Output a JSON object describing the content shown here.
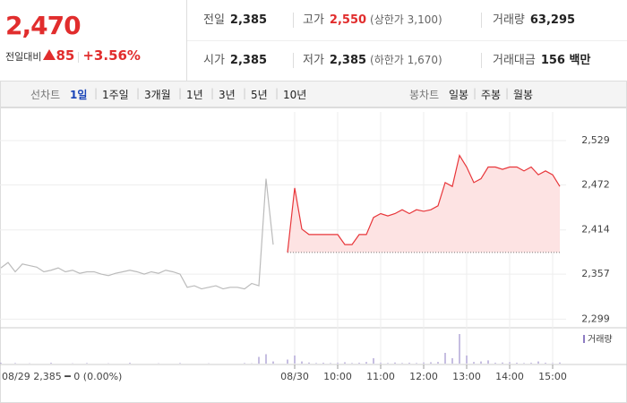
{
  "header": {
    "price": "2,470",
    "change_label": "전일대비",
    "change": "85",
    "change_pct": "+3.56%"
  },
  "summary": [
    [
      {
        "label": "전일",
        "value": "2,385"
      },
      {
        "label": "고가",
        "value": "2,550",
        "note": "(상한가 3,100)"
      },
      {
        "label": "거래량",
        "value": "63,295"
      }
    ],
    [
      {
        "label": "시가",
        "value": "2,385"
      },
      {
        "label": "저가",
        "value": "2,385",
        "note": "(하한가 1,670)"
      },
      {
        "label": "거래대금",
        "value": "156 백만"
      }
    ]
  ],
  "tabs": {
    "line_label": "선차트",
    "line": [
      "1일",
      "1주일",
      "3개월",
      "1년",
      "3년",
      "5년",
      "10년"
    ],
    "candle_label": "봉차트",
    "candle": [
      "일봉",
      "주봉",
      "월봉"
    ]
  },
  "chart_data": {
    "type": "line",
    "status": "08/29  2,385 ━ 0 (0.00%)",
    "categories": [
      null,
      null,
      null,
      null,
      null,
      null,
      null,
      null,
      null,
      null,
      null,
      null,
      null,
      null,
      null,
      null,
      null,
      null,
      null,
      null,
      null,
      null,
      null,
      null,
      null,
      null,
      null,
      null,
      null,
      null,
      null,
      null,
      null,
      null,
      null,
      null,
      null,
      null,
      null,
      null,
      null,
      "08/30",
      null,
      null,
      null,
      null,
      null,
      "10:00",
      null,
      null,
      null,
      null,
      null,
      "11:00",
      null,
      null,
      null,
      null,
      null,
      "12:00",
      null,
      null,
      null,
      null,
      null,
      "13:00",
      null,
      null,
      null,
      null,
      null,
      "14:00",
      null,
      null,
      null,
      null,
      null,
      "15:00",
      null,
      null
    ],
    "series": [
      {
        "color": "#bbbbbb",
        "values": [
          2365,
          2372,
          2360,
          2370,
          2368,
          2366,
          2360,
          2362,
          2365,
          2360,
          2362,
          2358,
          2360,
          2360,
          2357,
          2355,
          2358,
          2360,
          2362,
          2360,
          2357,
          2360,
          2358,
          2362,
          2360,
          2357,
          2340,
          2342,
          2338,
          2340,
          2342,
          2338,
          2340,
          2340,
          2338,
          2345,
          2342,
          2480,
          2395,
          null,
          null,
          null,
          null,
          null,
          null,
          null,
          null,
          null,
          null,
          null,
          null,
          null,
          null,
          null,
          null,
          null,
          null,
          null,
          null,
          null,
          null,
          null,
          null,
          null,
          null,
          null,
          null,
          null,
          null,
          null,
          null,
          null,
          null,
          null,
          null,
          null,
          null,
          null,
          null,
          null
        ]
      },
      {
        "color": "#e8363a",
        "fill": "#fde3e3",
        "values": [
          null,
          null,
          null,
          null,
          null,
          null,
          null,
          null,
          null,
          null,
          null,
          null,
          null,
          null,
          null,
          null,
          null,
          null,
          null,
          null,
          null,
          null,
          null,
          null,
          null,
          null,
          null,
          null,
          null,
          null,
          null,
          null,
          null,
          null,
          null,
          null,
          null,
          null,
          null,
          null,
          2385,
          2468,
          2415,
          2408,
          2408,
          2408,
          2408,
          2408,
          2395,
          2395,
          2408,
          2408,
          2430,
          2435,
          2432,
          2435,
          2440,
          2435,
          2440,
          2438,
          2440,
          2445,
          2475,
          2470,
          2510,
          2495,
          2475,
          2480,
          2495,
          2495,
          2492,
          2495,
          2495,
          2490,
          2495,
          2485,
          2490,
          2485,
          2470,
          null
        ]
      }
    ],
    "volume": {
      "name": "거래량",
      "color": "#8e7cc3",
      "ylim": [
        0,
        12000
      ],
      "values": [
        300,
        0,
        200,
        0,
        100,
        0,
        0,
        300,
        0,
        0,
        100,
        0,
        200,
        0,
        0,
        100,
        0,
        0,
        300,
        0,
        0,
        0,
        100,
        0,
        0,
        200,
        0,
        0,
        0,
        100,
        0,
        0,
        0,
        0,
        200,
        100,
        2500,
        3500,
        800,
        null,
        1500,
        3000,
        800,
        400,
        200,
        300,
        200,
        300,
        500,
        200,
        300,
        600,
        2000,
        300,
        200,
        400,
        200,
        300,
        200,
        400,
        500,
        600,
        4000,
        2000,
        11000,
        3000,
        600,
        800,
        1200,
        300,
        400,
        500,
        300,
        200,
        300,
        800,
        300,
        200,
        400,
        null
      ]
    },
    "ylim": [
      2289,
      2566
    ],
    "yticks": [
      {
        "value": 2299,
        "label": "2,299"
      },
      {
        "value": 2357,
        "label": "2,357"
      },
      {
        "value": 2414,
        "label": "2,414"
      },
      {
        "value": 2472,
        "label": "2,472"
      },
      {
        "value": 2529,
        "label": "2,529"
      }
    ],
    "grid": true
  }
}
